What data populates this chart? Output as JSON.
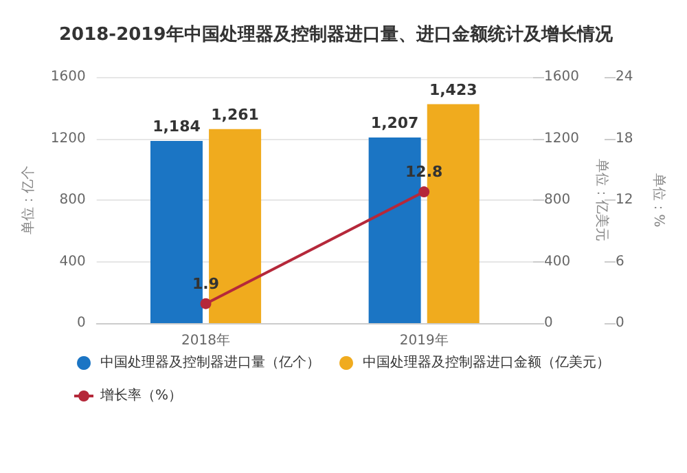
{
  "chart_data": {
    "type": "bar",
    "title": "2018-2019年中国处理器及控制器进口量、进口金额统计及增长情况",
    "categories": [
      "2018年",
      "2019年"
    ],
    "series": [
      {
        "name": "中国处理器及控制器进口量（亿个）",
        "color": "#1b75c4",
        "values": [
          1184,
          1207
        ],
        "value_labels": [
          "1,184",
          "1,207"
        ]
      },
      {
        "name": "中国处理器及控制器进口金额（亿美元）",
        "color": "#f0ab1e",
        "values": [
          1261,
          1423
        ],
        "value_labels": [
          "1,261",
          "1,423"
        ],
        "axis": "y2"
      },
      {
        "name": "增长率（%）",
        "type": "line",
        "color": "#b5283a",
        "values": [
          1.9,
          12.8
        ],
        "value_labels": [
          "1.9",
          "12.8"
        ],
        "axis": "y3",
        "marker": "circle"
      }
    ],
    "ylabel": "单位：亿个",
    "y2label": "单位：亿美元",
    "y3label": "单位：%",
    "ylim": [
      0,
      1600
    ],
    "yticks": [
      0,
      400,
      800,
      1200,
      1600
    ],
    "y2lim": [
      0,
      1600
    ],
    "y2ticks": [
      0,
      400,
      800,
      1200,
      1600
    ],
    "y3lim": [
      0,
      24
    ],
    "y3ticks": [
      0,
      6,
      12,
      18,
      24
    ],
    "grid": "y",
    "legend": "bottom"
  }
}
